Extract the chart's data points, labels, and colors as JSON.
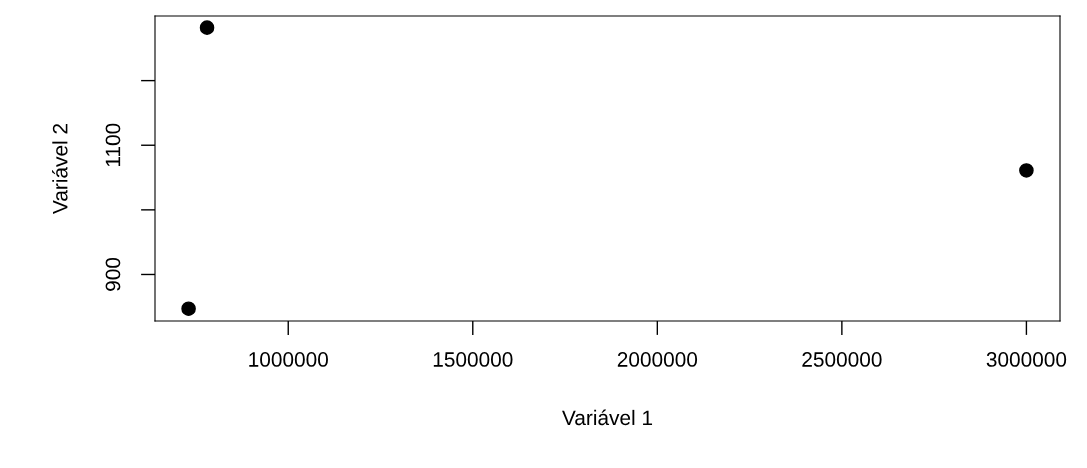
{
  "chart_data": {
    "type": "scatter",
    "xlabel": "Variável 1",
    "ylabel": "Variável 2",
    "x": [
      730000,
      780000,
      3000000
    ],
    "values": [
      847,
      1282,
      1061
    ],
    "color": "#000000",
    "marker": "circle",
    "xlim": [
      639000,
      3091000
    ],
    "ylim": [
      828,
      1300
    ],
    "xticks": [
      1000000,
      1500000,
      2000000,
      2500000,
      3000000
    ],
    "yticks": [
      900,
      {
        "value": 1000,
        "label": null
      },
      1100,
      {
        "value": 1200,
        "label": null
      }
    ],
    "grid": false,
    "legend": false
  }
}
